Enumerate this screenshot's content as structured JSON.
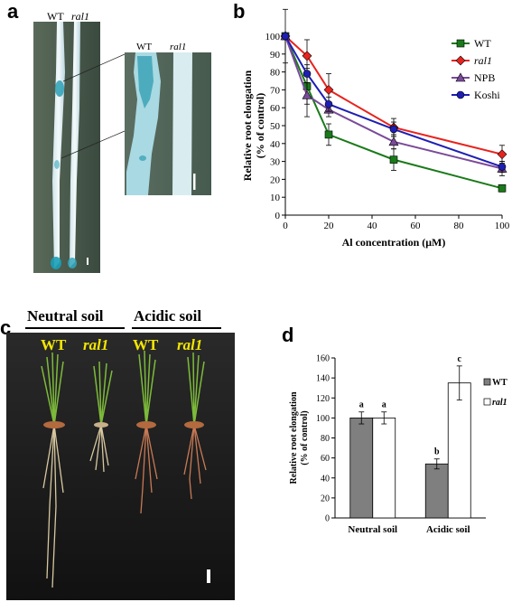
{
  "panels": {
    "a": {
      "letter": "a",
      "label_wt": "WT",
      "label_mut": "ral1",
      "inset_label_wt": "WT",
      "inset_label_mut": "ral1"
    },
    "b": {
      "letter": "b"
    },
    "c": {
      "letter": "c",
      "header_neutral": "Neutral soil",
      "header_acidic": "Acidic soil",
      "label_wt_1": "WT",
      "label_mut_1": "ral1",
      "label_wt_2": "WT",
      "label_mut_2": "ral1"
    },
    "d": {
      "letter": "d"
    }
  },
  "chart_data": [
    {
      "type": "line",
      "panel": "b",
      "xlabel": "Al concentration (μM)",
      "ylabel": "Relative root elongation (% of control)",
      "ylabel_lines": [
        "Relative root elongation",
        "(% of control)"
      ],
      "xlim": [
        0,
        100
      ],
      "ylim": [
        0,
        100
      ],
      "x_ticks": [
        0,
        20,
        40,
        60,
        80,
        100
      ],
      "y_ticks": [
        0,
        10,
        20,
        30,
        40,
        50,
        60,
        70,
        80,
        90,
        100
      ],
      "x": [
        0,
        10,
        20,
        50,
        100
      ],
      "legend_position": "top-right",
      "series": [
        {
          "name": "WT",
          "color": "#1a7a1a",
          "marker": "square",
          "values": [
            100,
            72,
            45,
            31,
            15
          ],
          "error": [
            15,
            10,
            6,
            6,
            2
          ]
        },
        {
          "name": "ral1",
          "italic": true,
          "color": "#e8231e",
          "marker": "diamond",
          "values": [
            100,
            89,
            70,
            49,
            34
          ],
          "error": [
            0,
            9,
            9,
            5,
            5
          ]
        },
        {
          "name": "NPB",
          "color": "#7a4a9a",
          "marker": "triangle",
          "values": [
            100,
            67,
            59,
            41,
            26
          ],
          "error": [
            0,
            12,
            4,
            4,
            4
          ]
        },
        {
          "name": "Koshi",
          "color": "#1e1eb4",
          "marker": "circle",
          "values": [
            100,
            79,
            62,
            48,
            27
          ],
          "error": [
            0,
            5,
            4,
            4,
            3
          ]
        }
      ]
    },
    {
      "type": "bar",
      "panel": "d",
      "ylabel": "Relative root elongation (% of control)",
      "ylabel_lines": [
        "Relative root elongation",
        "(% of control)"
      ],
      "categories": [
        "Neutral soil",
        "Acidic soil"
      ],
      "ylim": [
        0,
        160
      ],
      "y_ticks": [
        0,
        20,
        40,
        60,
        80,
        100,
        120,
        140,
        160
      ],
      "legend_position": "right",
      "series": [
        {
          "name": "WT",
          "fill": "#7f7f7f",
          "values": [
            100,
            54
          ],
          "error": [
            6,
            5
          ],
          "letters": [
            "a",
            "b"
          ]
        },
        {
          "name": "ral1",
          "italic": true,
          "fill": "#ffffff",
          "values": [
            100,
            135
          ],
          "error": [
            6,
            17
          ],
          "letters": [
            "a",
            "c"
          ]
        }
      ]
    }
  ]
}
